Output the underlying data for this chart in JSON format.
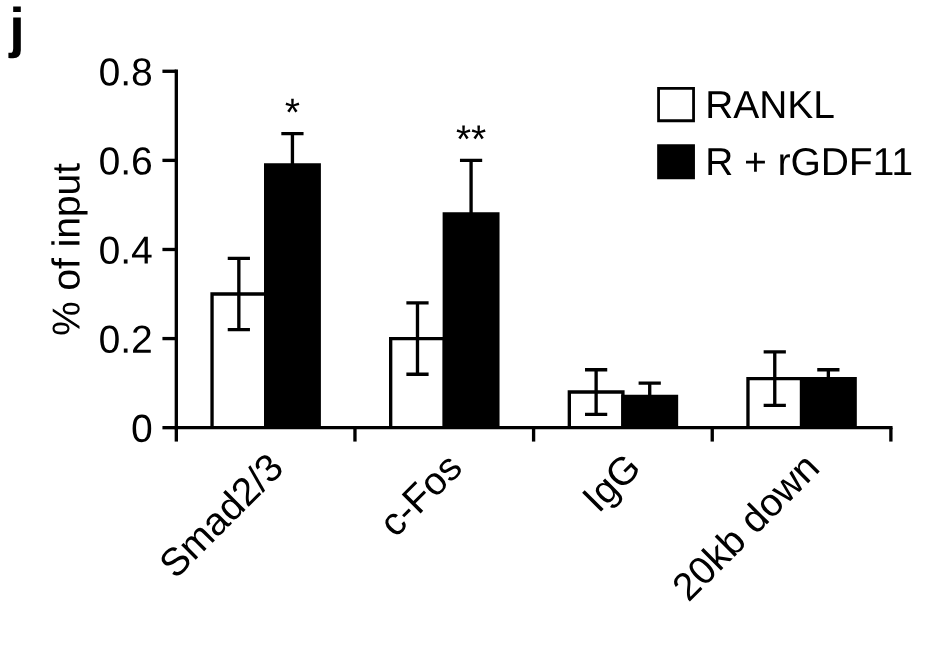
{
  "chart_data": {
    "type": "bar",
    "ylabel": "% of input",
    "categories": [
      "Smad2/3",
      "c-Fos",
      "IgG",
      "20kb down"
    ],
    "series": [
      {
        "name": "RANKL",
        "color": "#ffffff",
        "values": [
          0.3,
          0.2,
          0.08,
          0.11
        ],
        "errors": [
          0.08,
          0.08,
          0.05,
          0.06
        ]
      },
      {
        "name": "R + rGDF11",
        "color": "#000000",
        "values": [
          0.59,
          0.48,
          0.07,
          0.11
        ],
        "errors": [
          0.07,
          0.12,
          0.03,
          0.02
        ]
      }
    ],
    "annotations": [
      "j",
      "*",
      "**"
    ],
    "ylim": [
      0,
      0.8
    ],
    "yticks": [
      0,
      0.2,
      0.4,
      0.6,
      0.8
    ],
    "legend": "top right",
    "grid": false
  }
}
